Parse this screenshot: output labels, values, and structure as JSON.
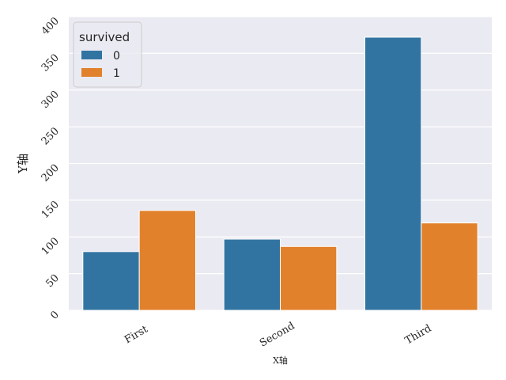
{
  "chart_data": {
    "type": "bar",
    "categories": [
      "First",
      "Second",
      "Third"
    ],
    "series": [
      {
        "name": "0",
        "values": [
          80,
          97,
          372
        ],
        "color": "#3274a1"
      },
      {
        "name": "1",
        "values": [
          136,
          87,
          119
        ],
        "color": "#e1812c"
      }
    ],
    "title": "",
    "xlabel": "X轴",
    "ylabel": "Y轴",
    "ylim": [
      0,
      400
    ],
    "yticks": [
      0,
      50,
      100,
      150,
      200,
      250,
      300,
      350,
      400
    ],
    "grid": true,
    "legend": {
      "title": "survived",
      "placement": "top-left"
    },
    "background": "#eaeaf2"
  }
}
